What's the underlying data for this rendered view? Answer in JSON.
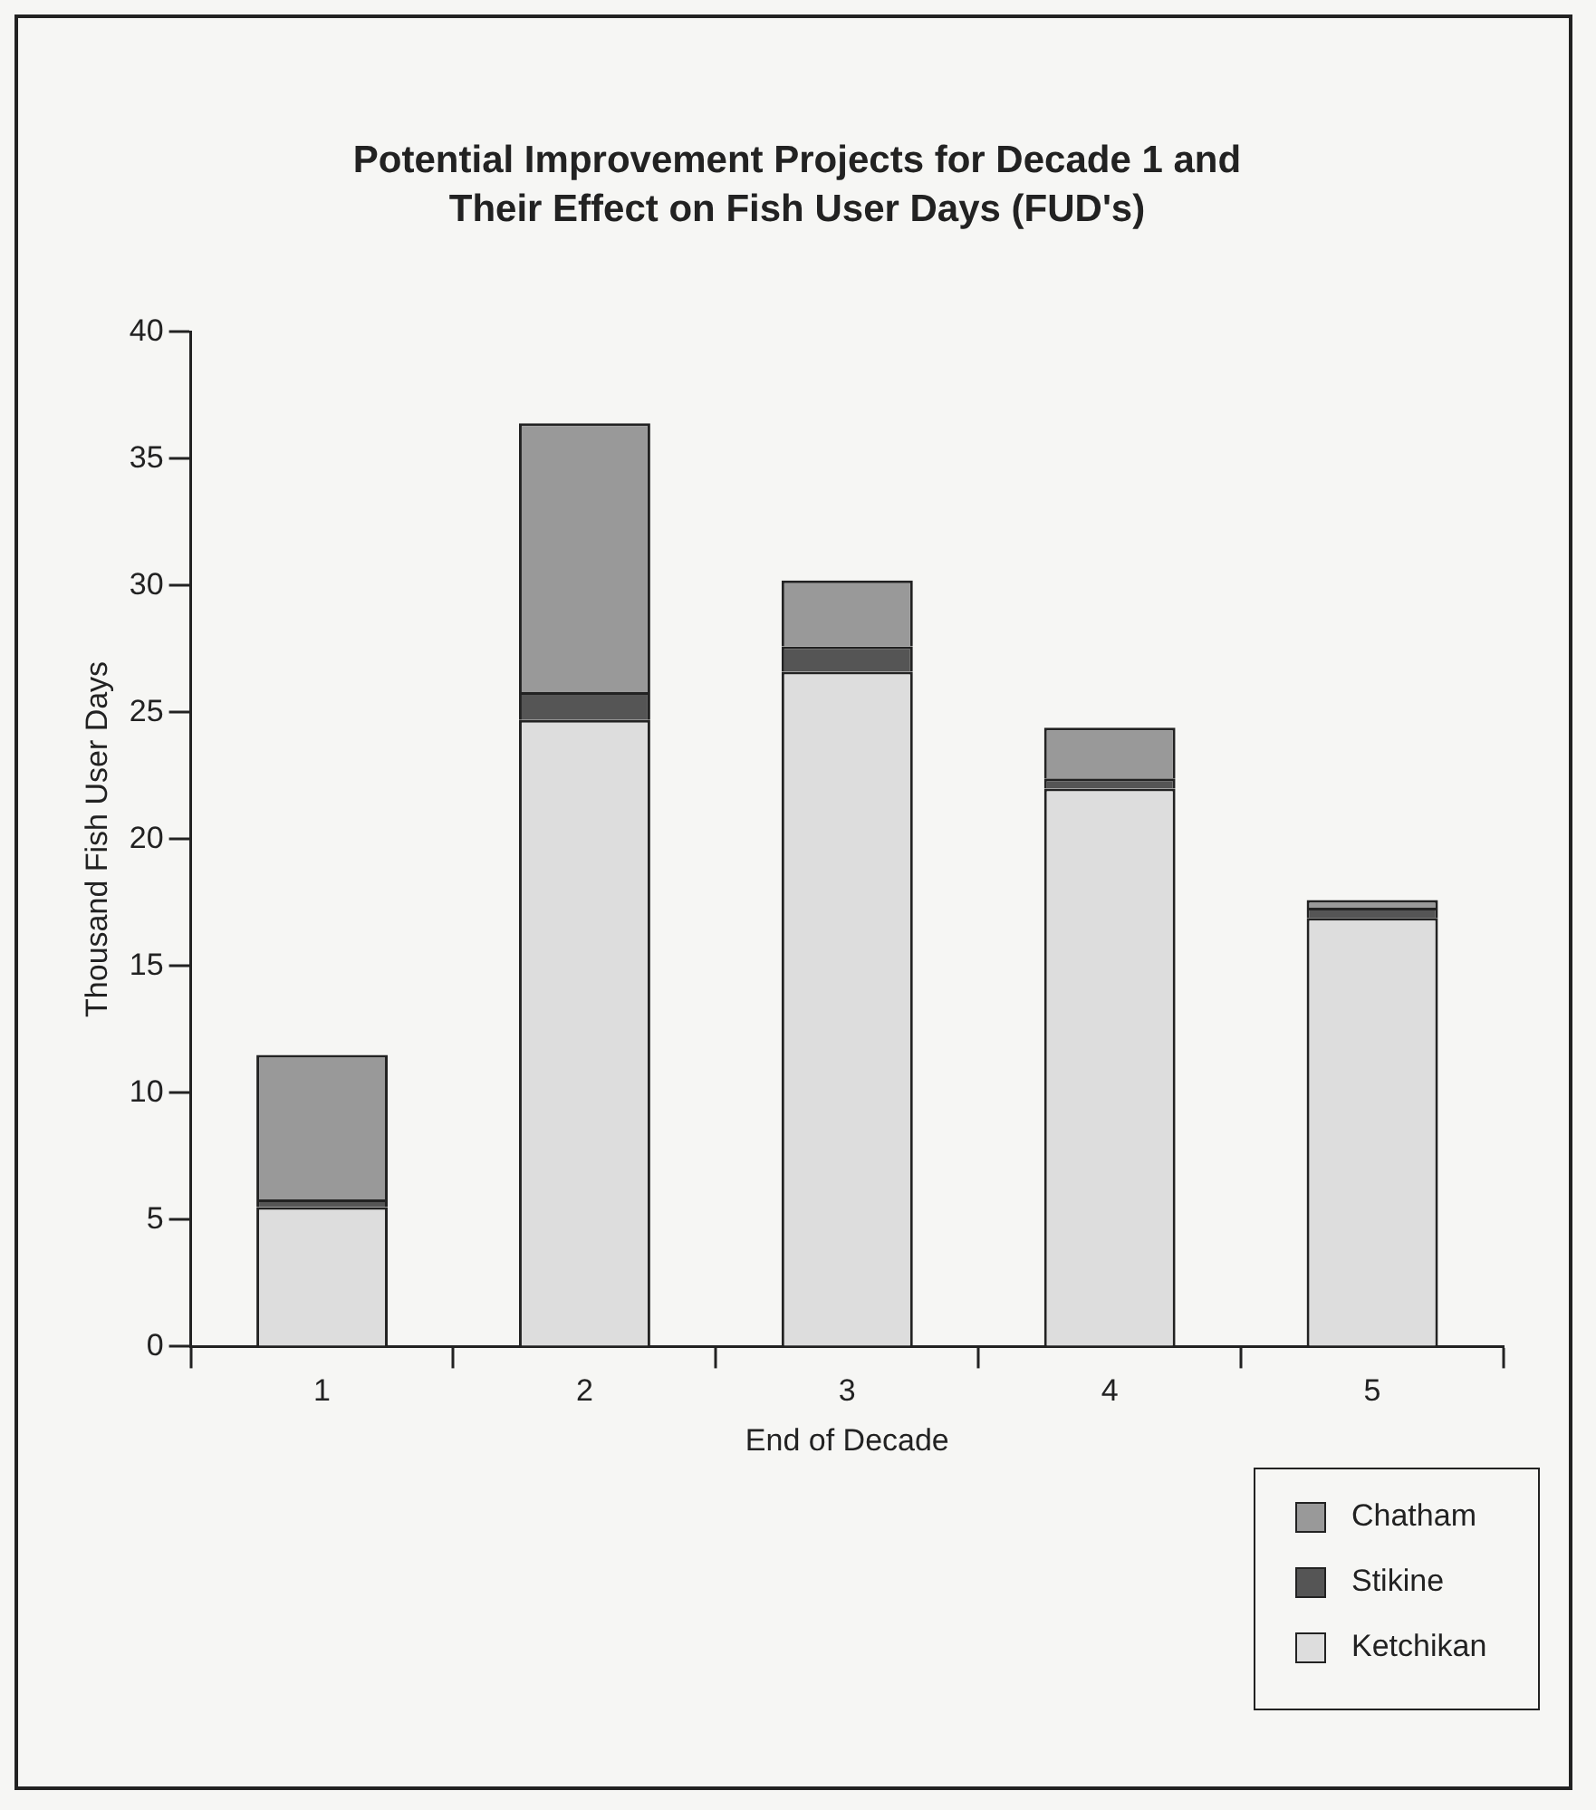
{
  "chart_data": {
    "type": "bar",
    "title": "Potential Improvement Projects for Decade 1 and Their Effect on Fish User Days (FUD's)",
    "xlabel": "End of Decade",
    "ylabel": "Thousand Fish User Days",
    "categories": [
      "1",
      "2",
      "3",
      "4",
      "5"
    ],
    "series": [
      {
        "name": "Ketchikan",
        "color": "#dddddd",
        "values": [
          5.5,
          24.7,
          26.6,
          22.0,
          16.9
        ]
      },
      {
        "name": "Stikine",
        "color": "#555555",
        "values": [
          0.3,
          1.1,
          1.0,
          0.4,
          0.4
        ]
      },
      {
        "name": "Chatham",
        "color": "#999999",
        "values": [
          5.7,
          10.6,
          2.6,
          2.0,
          0.3
        ]
      }
    ],
    "stacked": true,
    "ylim": [
      0,
      40
    ],
    "yticks": [
      0,
      5,
      10,
      15,
      20,
      25,
      30,
      35,
      40
    ],
    "grid": false,
    "legend": "bottom right"
  }
}
